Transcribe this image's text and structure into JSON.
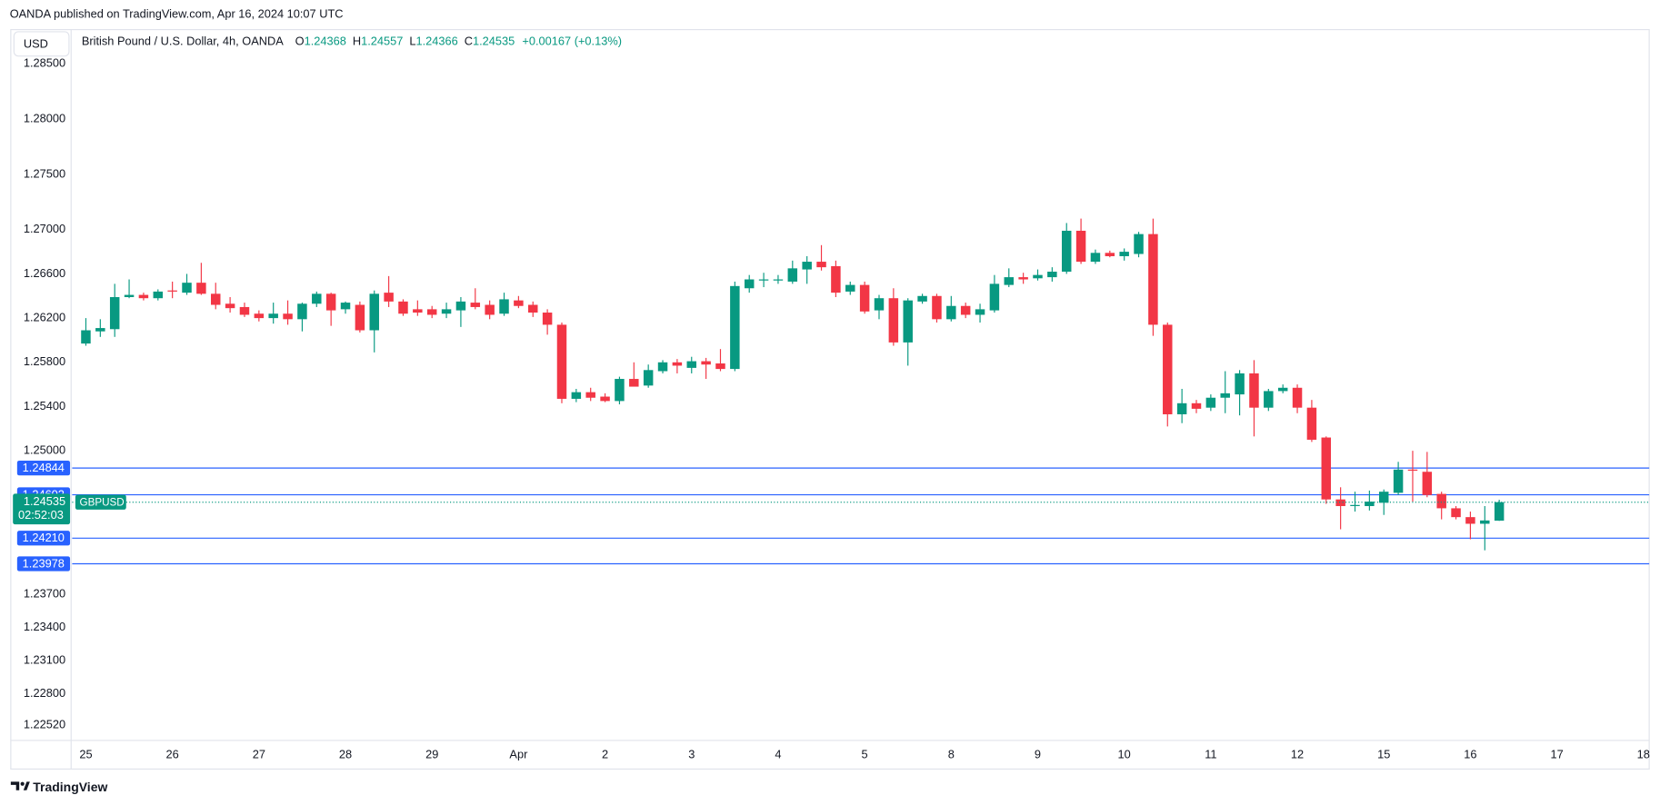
{
  "header": "OANDA published on TradingView.com, Apr 16, 2024 10:07 UTC",
  "footer": "TradingView",
  "chart_data": {
    "type": "candlestick",
    "title": "British Pound / U.S. Dollar, 4h, OANDA",
    "symbol": "GBPUSD",
    "currency": "USD",
    "ohlc_labels": [
      "O",
      "H",
      "L",
      "C"
    ],
    "change": "+0.00167 (+0.13%)",
    "countdown": "02:52:03",
    "up_color": "#089981",
    "down_color": "#f23645",
    "level_color": "#2962ff",
    "grid": false,
    "open": [
      1.2597,
      1.2608,
      1.261,
      1.2639,
      1.2641,
      1.2638,
      1.2645,
      1.2643,
      1.2652,
      1.2642,
      1.2633,
      1.263,
      1.2624,
      1.262,
      1.2624,
      1.2619,
      1.2633,
      1.2642,
      1.2628,
      1.2632,
      1.2609,
      1.2643,
      1.2635,
      1.2628,
      1.2628,
      1.2624,
      1.2627,
      1.2634,
      1.2632,
      1.2624,
      1.2636,
      1.2632,
      1.2625,
      1.2614,
      1.2547,
      1.2553,
      1.2549,
      1.2545,
      1.2565,
      1.2559,
      1.2572,
      1.258,
      1.2575,
      1.2581,
      1.2579,
      1.2574,
      1.2647,
      1.2654,
      1.2654,
      1.2653,
      1.2664,
      1.2671,
      1.2667,
      1.2644,
      1.265,
      1.2627,
      1.2638,
      1.2598,
      1.2635,
      1.264,
      1.2619,
      1.2631,
      1.2623,
      1.2627,
      1.265,
      1.2657,
      1.2656,
      1.2657,
      1.2662,
      1.2699,
      1.2671,
      1.2679,
      1.2676,
      1.2678,
      1.2696,
      1.2614,
      1.2533,
      1.2543,
      1.2539,
      1.2548,
      1.2551,
      1.257,
      1.2539,
      1.2554,
      1.2557,
      1.2539,
      1.2512,
      1.2456,
      1.245,
      1.245,
      1.2453,
      1.2462,
      1.2483,
      1.2481,
      1.2461,
      1.2448,
      1.244,
      1.2434,
      1.24368
    ],
    "high": [
      1.262,
      1.2619,
      1.2651,
      1.2655,
      1.2643,
      1.2646,
      1.2653,
      1.266,
      1.267,
      1.2652,
      1.2639,
      1.2634,
      1.2627,
      1.2634,
      1.2636,
      1.2634,
      1.2644,
      1.2643,
      1.2635,
      1.2635,
      1.2645,
      1.2658,
      1.2637,
      1.2636,
      1.2631,
      1.2634,
      1.2639,
      1.2647,
      1.2636,
      1.2643,
      1.264,
      1.2635,
      1.2628,
      1.2616,
      1.2556,
      1.2557,
      1.2552,
      1.2567,
      1.258,
      1.2578,
      1.2582,
      1.2583,
      1.2585,
      1.2584,
      1.2592,
      1.2653,
      1.2659,
      1.2661,
      1.2659,
      1.2672,
      1.2676,
      1.2686,
      1.2672,
      1.2653,
      1.2653,
      1.2641,
      1.2647,
      1.2638,
      1.2642,
      1.2642,
      1.264,
      1.2634,
      1.2633,
      1.2659,
      1.2665,
      1.2661,
      1.2664,
      1.2666,
      1.2706,
      1.271,
      1.2682,
      1.2681,
      1.2683,
      1.2698,
      1.271,
      1.2616,
      1.2556,
      1.2546,
      1.2551,
      1.2572,
      1.2573,
      1.2582,
      1.2556,
      1.256,
      1.256,
      1.2546,
      1.2513,
      1.2467,
      1.2463,
      1.2464,
      1.2465,
      1.249,
      1.25,
      1.2499,
      1.2463,
      1.245,
      1.2445,
      1.245,
      1.24557
    ],
    "low": [
      1.2595,
      1.2603,
      1.2603,
      1.2638,
      1.2636,
      1.2636,
      1.2638,
      1.2641,
      1.2641,
      1.2628,
      1.2625,
      1.2621,
      1.2617,
      1.2615,
      1.2614,
      1.2608,
      1.263,
      1.2613,
      1.2624,
      1.2607,
      1.2589,
      1.263,
      1.2622,
      1.2622,
      1.262,
      1.262,
      1.2612,
      1.2628,
      1.2619,
      1.2622,
      1.2629,
      1.2621,
      1.2605,
      1.2543,
      1.2544,
      1.2545,
      1.2544,
      1.2542,
      1.256,
      1.2557,
      1.257,
      1.257,
      1.257,
      1.2565,
      1.2572,
      1.2572,
      1.2643,
      1.2648,
      1.2651,
      1.2651,
      1.2651,
      1.2663,
      1.2639,
      1.2641,
      1.2624,
      1.2619,
      1.2595,
      1.2577,
      1.2633,
      1.2616,
      1.2617,
      1.262,
      1.2616,
      1.2625,
      1.2648,
      1.2651,
      1.2654,
      1.2653,
      1.266,
      1.2669,
      1.2669,
      1.2675,
      1.2672,
      1.2675,
      1.2604,
      1.2522,
      1.2525,
      1.2534,
      1.2536,
      1.2534,
      1.2532,
      1.2513,
      1.2536,
      1.2552,
      1.2534,
      1.2508,
      1.2452,
      1.2429,
      1.2445,
      1.2446,
      1.2442,
      1.246,
      1.2454,
      1.2458,
      1.2438,
      1.2438,
      1.242,
      1.241,
      1.24366
    ],
    "close": [
      1.2609,
      1.2611,
      1.2639,
      1.2641,
      1.2638,
      1.2644,
      1.2644,
      1.2652,
      1.2642,
      1.2632,
      1.2629,
      1.2623,
      1.262,
      1.2624,
      1.2619,
      1.2633,
      1.2642,
      1.2627,
      1.2634,
      1.2609,
      1.2642,
      1.2635,
      1.2624,
      1.2625,
      1.2623,
      1.2628,
      1.2635,
      1.263,
      1.2623,
      1.2637,
      1.2631,
      1.2625,
      1.2614,
      1.2547,
      1.2553,
      1.2548,
      1.2545,
      1.2565,
      1.2558,
      1.2573,
      1.258,
      1.2577,
      1.2581,
      1.2578,
      1.2574,
      1.2649,
      1.2655,
      1.2655,
      1.2655,
      1.2665,
      1.2671,
      1.2666,
      1.2643,
      1.265,
      1.2626,
      1.2638,
      1.2598,
      1.2636,
      1.264,
      1.2619,
      1.2631,
      1.2623,
      1.2628,
      1.2651,
      1.2657,
      1.2655,
      1.2659,
      1.2662,
      1.2699,
      1.2671,
      1.2679,
      1.2676,
      1.268,
      1.2696,
      1.2614,
      1.2533,
      1.2543,
      1.2538,
      1.2548,
      1.2552,
      1.257,
      1.2539,
      1.2554,
      1.2557,
      1.2539,
      1.251,
      1.2456,
      1.245,
      1.2451,
      1.2454,
      1.2463,
      1.2483,
      1.2482,
      1.246,
      1.2448,
      1.244,
      1.2434,
      1.2437,
      1.24535
    ],
    "xlim": [
      -0.95,
      108.4
    ],
    "xticks": [
      {
        "value": 0,
        "label": "25"
      },
      {
        "value": 6,
        "label": "26"
      },
      {
        "value": 12,
        "label": "27"
      },
      {
        "value": 18,
        "label": "28"
      },
      {
        "value": 24,
        "label": "29"
      },
      {
        "value": 30,
        "label": "Apr"
      },
      {
        "value": 36,
        "label": "2"
      },
      {
        "value": 42,
        "label": "3"
      },
      {
        "value": 48,
        "label": "4"
      },
      {
        "value": 54,
        "label": "5"
      },
      {
        "value": 60,
        "label": "8"
      },
      {
        "value": 66,
        "label": "9"
      },
      {
        "value": 72,
        "label": "10"
      },
      {
        "value": 78,
        "label": "11"
      },
      {
        "value": 84,
        "label": "12"
      },
      {
        "value": 90,
        "label": "15"
      },
      {
        "value": 96,
        "label": "16"
      },
      {
        "value": 102,
        "label": "17"
      },
      {
        "value": 108,
        "label": "18"
      }
    ],
    "ylim": [
      1.2238,
      1.2879
    ],
    "yticks": [
      {
        "value": 1.285,
        "label": "1.28500"
      },
      {
        "value": 1.28,
        "label": "1.28000"
      },
      {
        "value": 1.275,
        "label": "1.27500"
      },
      {
        "value": 1.27,
        "label": "1.27000"
      },
      {
        "value": 1.266,
        "label": "1.26600"
      },
      {
        "value": 1.262,
        "label": "1.26200"
      },
      {
        "value": 1.258,
        "label": "1.25800"
      },
      {
        "value": 1.254,
        "label": "1.25400"
      },
      {
        "value": 1.25,
        "label": "1.25000"
      },
      {
        "value": 1.237,
        "label": "1.23700"
      },
      {
        "value": 1.234,
        "label": "1.23400"
      },
      {
        "value": 1.231,
        "label": "1.23100"
      },
      {
        "value": 1.228,
        "label": "1.22800"
      },
      {
        "value": 1.2252,
        "label": "1.22520"
      }
    ],
    "levels": [
      1.24844,
      1.24602,
      {
        "value": 1.2421,
        "label": "1.24210"
      },
      1.23978
    ]
  }
}
